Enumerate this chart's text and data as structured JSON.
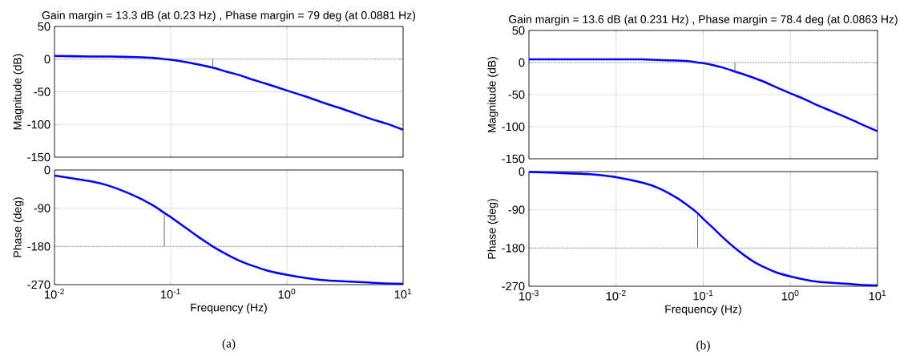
{
  "chart_data": [
    {
      "type": "line",
      "title": "Gain margin = 13.3 dB (at 0.23 Hz) , Phase margin = 79 deg (at 0.0881 Hz)",
      "ylabel": "Magnitude (dB)",
      "log": "x",
      "grid": true,
      "tick_labels": "y",
      "xlim": [
        0.01,
        10
      ],
      "xticks": [
        {
          "value": 0.01,
          "label": null
        },
        {
          "value": 0.1,
          "label": null
        },
        {
          "value": 1,
          "label": null
        },
        {
          "value": 10,
          "label": null
        }
      ],
      "ylim": [
        -150,
        50
      ],
      "yticks": [
        -150,
        -100,
        -50,
        0,
        50
      ],
      "ref_lines": [
        {
          "axis": "y",
          "value": 0,
          "color": "#404040",
          "line_style": "dotted"
        }
      ],
      "series": [
        {
          "color": "#0000ff",
          "x": [
            0.01,
            0.02,
            0.03,
            0.05,
            0.07,
            0.0881,
            0.1,
            0.13,
            0.17,
            0.23,
            0.3,
            0.4,
            0.5,
            0.7,
            1,
            1.5,
            2,
            3,
            5,
            7,
            10
          ],
          "values": [
            5,
            4,
            4,
            3,
            2,
            0,
            -1,
            -4,
            -8,
            -13,
            -19,
            -25,
            -31,
            -39,
            -48,
            -58,
            -66,
            -76,
            -90,
            -98,
            -108
          ]
        },
        {
          "color": "#404040",
          "x": [
            0.23,
            0.23
          ],
          "values": [
            0,
            -13
          ]
        }
      ]
    },
    {
      "type": "line",
      "title": "Gain margin = 13.6 dB (at 0.231 Hz) ,  Phase margin = 78.4 deg (at 0.0863 Hz)",
      "ylabel": "Magnitude (dB)",
      "log": "x",
      "grid": true,
      "tick_labels": "y",
      "xlim": [
        0.001,
        10
      ],
      "xticks": [
        {
          "value": 0.001,
          "label": null
        },
        {
          "value": 0.01,
          "label": null
        },
        {
          "value": 0.1,
          "label": null
        },
        {
          "value": 1,
          "label": null
        },
        {
          "value": 10,
          "label": null
        }
      ],
      "ylim": [
        -150,
        50
      ],
      "yticks": [
        -150,
        -100,
        -50,
        0,
        50
      ],
      "ref_lines": [
        {
          "axis": "y",
          "value": 0,
          "color": "#404040",
          "line_style": "dotted"
        }
      ],
      "series": [
        {
          "color": "#0000ff",
          "x": [
            0.001,
            0.002,
            0.005,
            0.01,
            0.02,
            0.03,
            0.05,
            0.07,
            0.0863,
            0.1,
            0.13,
            0.17,
            0.231,
            0.3,
            0.4,
            0.5,
            0.7,
            1,
            1.5,
            2,
            3,
            5,
            7,
            10
          ],
          "values": [
            5,
            5,
            5,
            5,
            5,
            4,
            3,
            2,
            0,
            -1,
            -4,
            -8,
            -14,
            -19,
            -25,
            -30,
            -39,
            -48,
            -58,
            -66,
            -76,
            -89,
            -98,
            -107
          ]
        },
        {
          "color": "#404040",
          "x": [
            0.231,
            0.231
          ],
          "values": [
            0,
            -14
          ]
        }
      ]
    },
    {
      "type": "line",
      "ylabel": "Phase (deg)",
      "xlabel": "Frequency  (Hz)",
      "annotations": [
        "(a)"
      ],
      "log": "x",
      "grid": true,
      "xlim": [
        0.01,
        10
      ],
      "xticks": [
        {
          "value": 0.01,
          "label": "10$^{-2}$"
        },
        {
          "value": 0.1,
          "label": "10$^{-1}$"
        },
        {
          "value": 1,
          "label": "10$^{0}$"
        },
        {
          "value": 10,
          "label": "10$^{1}$"
        }
      ],
      "ylim": [
        -270,
        0
      ],
      "yticks": [
        -270,
        -180,
        -90,
        0
      ],
      "ref_lines": [
        {
          "axis": "y",
          "value": -180,
          "color": "#404040",
          "line_style": "dotted"
        }
      ],
      "series": [
        {
          "color": "#0000ff",
          "x": [
            0.01,
            0.02,
            0.03,
            0.05,
            0.07,
            0.0881,
            0.1,
            0.13,
            0.17,
            0.23,
            0.3,
            0.4,
            0.5,
            0.7,
            1,
            1.5,
            2,
            3,
            5,
            7,
            10
          ],
          "values": [
            -13,
            -26,
            -38,
            -62,
            -83,
            -101,
            -111,
            -133,
            -156,
            -180,
            -198,
            -215,
            -225,
            -238,
            -247,
            -255,
            -259,
            -262,
            -265,
            -267,
            -268
          ]
        },
        {
          "color": "#404040",
          "x": [
            0.0881,
            0.0881
          ],
          "values": [
            -180,
            -101
          ]
        }
      ]
    },
    {
      "type": "line",
      "ylabel": "Phase (deg)",
      "xlabel": "Frequency  (Hz)",
      "annotations": [
        "(b)"
      ],
      "log": "x",
      "grid": true,
      "xlim": [
        0.001,
        10
      ],
      "xticks": [
        {
          "value": 0.001,
          "label": "10$^{-3}$"
        },
        {
          "value": 0.01,
          "label": "10$^{-2}$"
        },
        {
          "value": 0.1,
          "label": "10$^{-1}$"
        },
        {
          "value": 1,
          "label": "10$^{0}$"
        },
        {
          "value": 10,
          "label": "10$^{1}$"
        }
      ],
      "ylim": [
        -270,
        0
      ],
      "yticks": [
        -270,
        -180,
        -90,
        0
      ],
      "ref_lines": [
        {
          "axis": "y",
          "value": -180,
          "color": "#404040",
          "line_style": "dotted"
        }
      ],
      "series": [
        {
          "color": "#0000ff",
          "x": [
            0.001,
            0.002,
            0.005,
            0.01,
            0.02,
            0.03,
            0.05,
            0.07,
            0.0863,
            0.1,
            0.13,
            0.17,
            0.231,
            0.3,
            0.4,
            0.5,
            0.7,
            1,
            1.5,
            2,
            3,
            5,
            7,
            10
          ],
          "values": [
            -1,
            -3,
            -6,
            -13,
            -26,
            -38,
            -62,
            -83,
            -98,
            -111,
            -133,
            -156,
            -180,
            -198,
            -215,
            -225,
            -238,
            -247,
            -255,
            -259,
            -262,
            -265,
            -267,
            -268
          ]
        },
        {
          "color": "#404040",
          "x": [
            0.0863,
            0.0863
          ],
          "values": [
            -180,
            -98
          ]
        }
      ]
    }
  ]
}
